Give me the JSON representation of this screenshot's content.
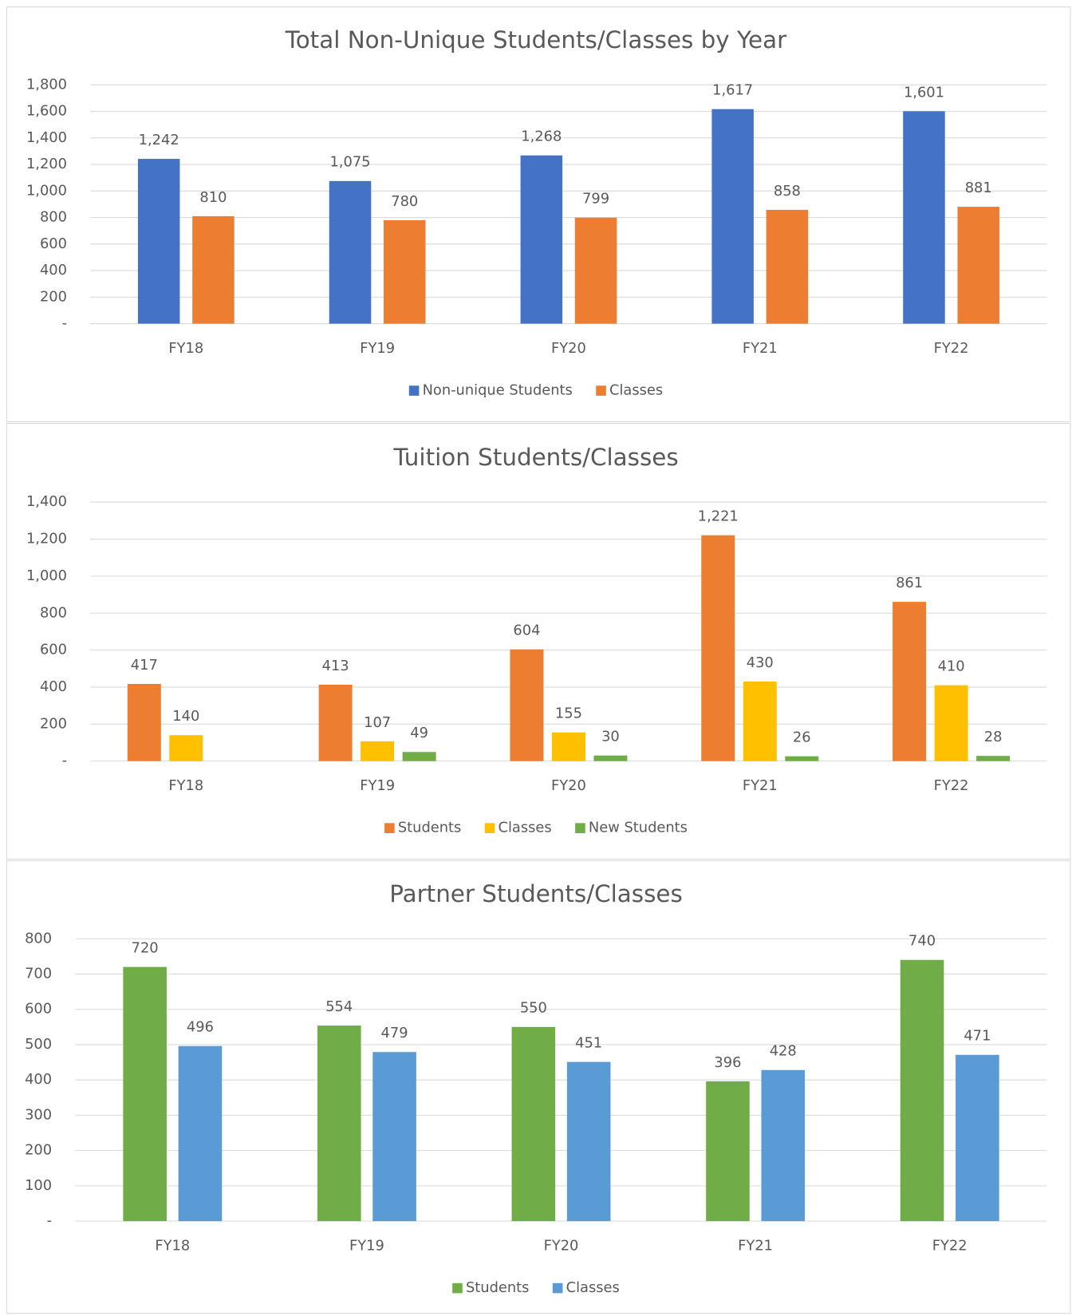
{
  "chart_data": [
    {
      "type": "bar",
      "title": "Total Non-Unique Students/Classes by Year",
      "categories": [
        "FY18",
        "FY19",
        "FY20",
        "FY21",
        "FY22"
      ],
      "series": [
        {
          "name": "Non-unique Students",
          "color": "#4472c4",
          "values": [
            1242,
            1075,
            1268,
            1617,
            1601
          ],
          "value_labels": [
            "1,242",
            "1,075",
            "1,268",
            "1,617",
            "1,601"
          ]
        },
        {
          "name": "Classes",
          "color": "#ed7d31",
          "values": [
            810,
            780,
            799,
            858,
            881
          ]
        }
      ],
      "ylim": [
        0,
        1800
      ],
      "yticks": [
        {
          "value": 0,
          "label": "-"
        },
        200,
        400,
        600,
        800,
        {
          "value": 1000,
          "label": "1,000"
        },
        {
          "value": 1200,
          "label": "1,200"
        },
        {
          "value": 1400,
          "label": "1,400"
        },
        {
          "value": 1600,
          "label": "1,600"
        },
        {
          "value": 1800,
          "label": "1,800"
        }
      ],
      "grid": true,
      "legend": "bottom"
    },
    {
      "type": "bar",
      "title": "Tuition Students/Classes",
      "categories": [
        "FY18",
        "FY19",
        "FY20",
        "FY21",
        "FY22"
      ],
      "series": [
        {
          "name": "Students",
          "color": "#ed7d31",
          "values": [
            417,
            413,
            604,
            1221,
            861
          ],
          "value_labels": [
            "417",
            "413",
            "604",
            "1,221",
            "861"
          ]
        },
        {
          "name": "Classes",
          "color": "#ffc000",
          "values": [
            140,
            107,
            155,
            430,
            410
          ]
        },
        {
          "name": "New Students",
          "color": "#70ad47",
          "values": [
            null,
            49,
            30,
            26,
            28
          ]
        }
      ],
      "ylim": [
        0,
        1400
      ],
      "yticks": [
        {
          "value": 0,
          "label": "-"
        },
        200,
        400,
        600,
        800,
        {
          "value": 1000,
          "label": "1,000"
        },
        {
          "value": 1200,
          "label": "1,200"
        },
        {
          "value": 1400,
          "label": "1,400"
        }
      ],
      "grid": true,
      "legend": "bottom"
    },
    {
      "type": "bar",
      "title": "Partner Students/Classes",
      "categories": [
        "FY18",
        "FY19",
        "FY20",
        "FY21",
        "FY22"
      ],
      "series": [
        {
          "name": "Students",
          "color": "#70ad47",
          "values": [
            720,
            554,
            550,
            396,
            740
          ]
        },
        {
          "name": "Classes",
          "color": "#5b9bd5",
          "values": [
            496,
            479,
            451,
            428,
            471
          ]
        }
      ],
      "ylim": [
        0,
        800
      ],
      "yticks": [
        {
          "value": 0,
          "label": "-"
        },
        100,
        200,
        300,
        400,
        500,
        600,
        700,
        800
      ],
      "grid": true,
      "legend": "bottom"
    }
  ]
}
